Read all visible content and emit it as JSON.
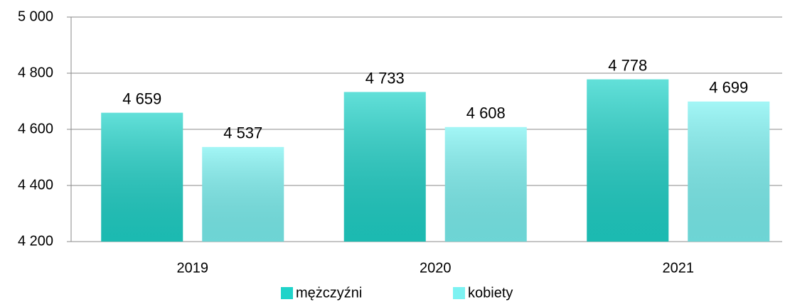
{
  "chart_data": {
    "type": "bar",
    "categories": [
      "2019",
      "2020",
      "2021"
    ],
    "series": [
      {
        "name": "mężczyźni",
        "color": "#1fd3c9",
        "values": [
          4659,
          4733,
          4778
        ],
        "value_labels": [
          "4 659",
          "4 733",
          "4 778"
        ]
      },
      {
        "name": "kobiety",
        "color": "#7cf2f2",
        "values": [
          4537,
          4608,
          4699
        ],
        "value_labels": [
          "4 537",
          "4 608",
          "4 699"
        ]
      }
    ],
    "ylim": [
      4200,
      5000
    ],
    "yticks": [
      {
        "value": 4200,
        "label": "4 200"
      },
      {
        "value": 4400,
        "label": "4 400"
      },
      {
        "value": 4600,
        "label": "4 600"
      },
      {
        "value": 4800,
        "label": "4 800"
      },
      {
        "value": 5000,
        "label": "5 000"
      }
    ],
    "grid": true,
    "legend": "bottom"
  }
}
